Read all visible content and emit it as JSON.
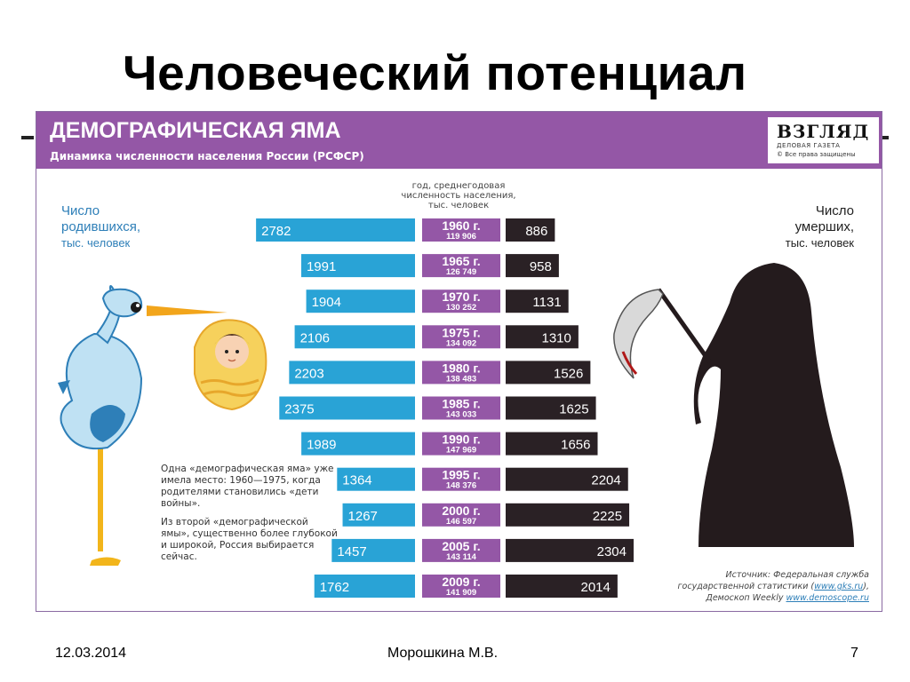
{
  "slide": {
    "title": "Человеческий потенциал",
    "date": "12.03.2014",
    "author": "Морошкина М.В.",
    "page": "7"
  },
  "infographic": {
    "title": "ДЕМОГРАФИЧЕСКАЯ ЯМА",
    "subtitle": "Динамика численности населения России (РСФСР)",
    "logo": {
      "word": "ВЗГЛЯД",
      "tagline": "ДЕЛОВАЯ ГАЗЕТА",
      "rights": "© Все права защищены"
    },
    "births_label_line1": "Число",
    "births_label_line2": "родившихся,",
    "births_label_unit": "тыс. человек",
    "deaths_label_line1": "Число",
    "deaths_label_line2": "умерших,",
    "deaths_label_unit": "тыс. человек",
    "center_label": "год, среднегодовая численность населения, тыс. человек",
    "note1": "Одна «демографическая яма» уже имела место: 1960—1975, когда родителями становились «дети войны».",
    "note2": "Из второй «демографической ямы», существенно более глубокой и широкой, Россия выбирается сейчас.",
    "source_line1": "Источник: Федеральная служба",
    "source_line2_text": "государственной статистики (",
    "source_line2_link": "www.gks.ru",
    "source_line2_end": "),",
    "source_line3_text": "Демоскоп Weekly ",
    "source_line3_link": "www.demoscope.ru"
  },
  "colors": {
    "births": "#29a3d6",
    "deaths": "#2a2125",
    "year_box": "#9457a6",
    "header": "#9457a6"
  },
  "chart_data": {
    "type": "bar",
    "title": "ДЕМОГРАФИЧЕСКАЯ ЯМА",
    "subtitle": "Динамика численности населения России (РСФСР)",
    "categories": [
      "1960 г.",
      "1965 г.",
      "1970 г.",
      "1975 г.",
      "1980 г.",
      "1985 г.",
      "1990 г.",
      "1995 г.",
      "2000 г.",
      "2005 г.",
      "2009 г."
    ],
    "population": [
      "119 906",
      "126 749",
      "130 252",
      "134 092",
      "138 483",
      "143 033",
      "147 969",
      "148 376",
      "146 597",
      "143 114",
      "141 909"
    ],
    "series": [
      {
        "name": "Число родившихся, тыс. человек",
        "values": [
          2782,
          1991,
          1904,
          2106,
          2203,
          2375,
          1989,
          1364,
          1267,
          1457,
          1762
        ]
      },
      {
        "name": "Число умерших, тыс. человек",
        "values": [
          886,
          958,
          1131,
          1310,
          1526,
          1625,
          1656,
          2204,
          2225,
          2304,
          2014
        ]
      }
    ]
  }
}
